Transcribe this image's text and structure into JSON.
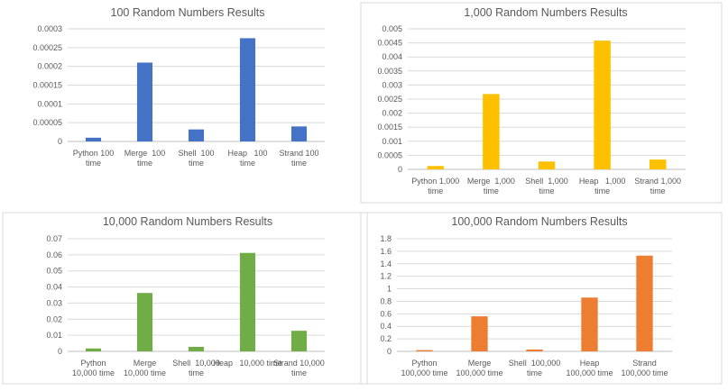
{
  "chart_data": [
    {
      "type": "bar",
      "title": "100 Random Numbers Results",
      "categories": [
        [
          "Python 100",
          "time"
        ],
        [
          "Merge  100",
          "time"
        ],
        [
          "Shell  100",
          "time"
        ],
        [
          "Heap   100",
          "time"
        ],
        [
          "Strand 100",
          "time"
        ]
      ],
      "values": [
        1e-05,
        0.00021,
        3.2e-05,
        0.000275,
        4e-05
      ],
      "ylim": [
        0,
        0.0003
      ],
      "yticks": [
        "0",
        "0.00005",
        "0.0001",
        "0.00015",
        "0.0002",
        "0.00025",
        "0.0003"
      ],
      "color": "#4472c4",
      "grid": true,
      "border": false
    },
    {
      "type": "bar",
      "title": "1,000 Random Numbers Results",
      "categories": [
        [
          "Python 1,000",
          "time"
        ],
        [
          "Merge  1,000",
          "time"
        ],
        [
          "Shell  1,000",
          "time"
        ],
        [
          "Heap   1,000",
          "time"
        ],
        [
          "Strand 1,000",
          "time"
        ]
      ],
      "values": [
        0.00012,
        0.00268,
        0.00028,
        0.00458,
        0.00035
      ],
      "ylim": [
        0,
        0.005
      ],
      "yticks": [
        "0",
        "0.0005",
        "0.001",
        "0.0015",
        "0.002",
        "0.0025",
        "0.003",
        "0.0035",
        "0.004",
        "0.0045",
        "0.005"
      ],
      "color": "#ffc000",
      "grid": true,
      "border": true
    },
    {
      "type": "bar",
      "title": "10,000 Random Numbers Results",
      "categories": [
        [
          "Python",
          "10,000 time"
        ],
        [
          "Merge",
          "10,000 time"
        ],
        [
          "Shell  10,000",
          "time"
        ],
        [
          "Heap   10,000 time",
          ""
        ],
        [
          "Strand 10,000",
          "time"
        ]
      ],
      "values": [
        0.0018,
        0.0363,
        0.0028,
        0.0612,
        0.0128
      ],
      "ylim": [
        0,
        0.07
      ],
      "yticks": [
        "0",
        "0.01",
        "0.02",
        "0.03",
        "0.04",
        "0.05",
        "0.06",
        "0.07"
      ],
      "color": "#70ad47",
      "grid": true,
      "border": true
    },
    {
      "type": "bar",
      "title": "100,000 Random Numbers Results",
      "categories": [
        [
          "Python",
          "100,000 time"
        ],
        [
          "Merge",
          "100,000 time"
        ],
        [
          "Shell  100,000",
          "time"
        ],
        [
          "Heap",
          "100,000 time"
        ],
        [
          "Strand",
          "100,000 time"
        ]
      ],
      "values": [
        0.02,
        0.56,
        0.03,
        0.86,
        1.53
      ],
      "ylim": [
        0,
        1.8
      ],
      "yticks": [
        "0",
        "0.2",
        "0.4",
        "0.6",
        "0.8",
        "1",
        "1.2",
        "1.4",
        "1.6",
        "1.8"
      ],
      "color": "#ed7d31",
      "grid": true,
      "border": true
    }
  ]
}
